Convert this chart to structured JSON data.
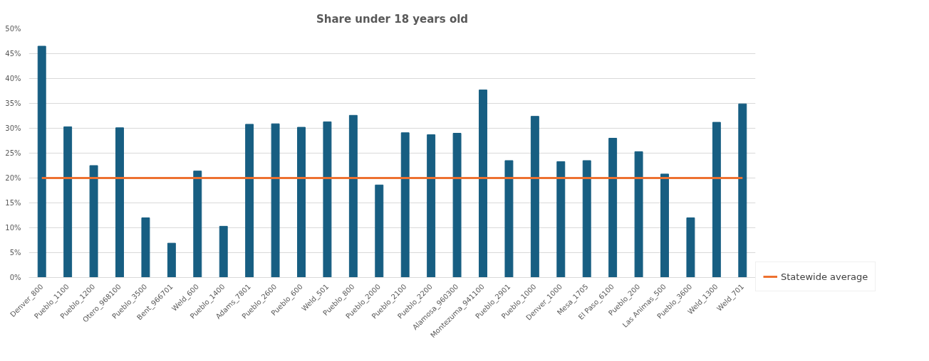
{
  "chart_data": {
    "type": "bar",
    "title": "Share under 18 years old",
    "categories": [
      "Denver_800",
      "Pueblo_1100",
      "Pueblo_1200",
      "Otero_968100",
      "Pueblo_3500",
      "Bent_966701",
      "Weld_600",
      "Pueblo_1400",
      "Adams_7801",
      "Pueblo_2600",
      "Pueblo_600",
      "Weld_501",
      "Pueblo_800",
      "Pueblo_2000",
      "Pueblo_2100",
      "Pueblo_2200",
      "Alamosa_960300",
      "Montezuma_941100",
      "Pueblo_2901",
      "Pueblo_1000",
      "Denver_1000",
      "Mesa_1705",
      "El Paso_6100",
      "Pueblo_200",
      "Las Animas_500",
      "Pueblo_3600",
      "Weld_1300",
      "Weld_701"
    ],
    "series": [
      {
        "color": "#175e82",
        "values": [
          46.5,
          30.3,
          22.5,
          30.1,
          12.0,
          6.9,
          21.4,
          10.3,
          30.8,
          30.9,
          30.2,
          31.3,
          32.6,
          18.6,
          29.1,
          28.7,
          29.0,
          37.7,
          23.5,
          32.4,
          23.3,
          23.5,
          28.0,
          25.3,
          20.8,
          12.0,
          31.2,
          34.9
        ]
      },
      {
        "type": "line",
        "name": "Statewide average",
        "color": "#ed7130",
        "values": [
          20,
          20,
          20,
          20,
          20,
          20,
          20,
          20,
          20,
          20,
          20,
          20,
          20,
          20,
          20,
          20,
          20,
          20,
          20,
          20,
          20,
          20,
          20,
          20,
          20,
          20,
          20,
          20
        ]
      }
    ],
    "ylim": [
      0,
      50
    ],
    "yticks": [
      {
        "value": 0,
        "label": "0%"
      },
      {
        "value": 5,
        "label": "5%"
      },
      {
        "value": 10,
        "label": "10%"
      },
      {
        "value": 15,
        "label": "15%"
      },
      {
        "value": 20,
        "label": "20%"
      },
      {
        "value": 25,
        "label": "25%"
      },
      {
        "value": 30,
        "label": "30%"
      },
      {
        "value": 35,
        "label": "35%"
      },
      {
        "value": 40,
        "label": "40%"
      },
      {
        "value": 45,
        "label": "45%"
      },
      {
        "value": 50,
        "label": "50%"
      }
    ],
    "grid": "y",
    "legend": "bottom right"
  }
}
